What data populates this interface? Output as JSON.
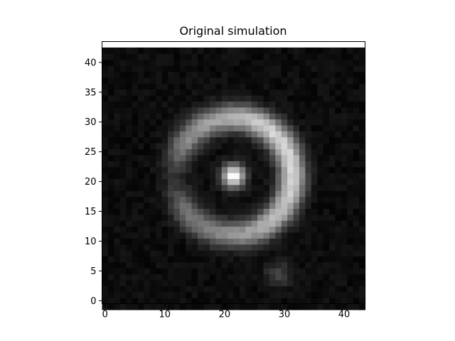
{
  "chart_data": {
    "type": "heatmap",
    "title": "Original simulation",
    "xlabel": "",
    "ylabel": "",
    "colormap": "gray",
    "grid": false,
    "legend": "none",
    "image_size": [
      44,
      44
    ],
    "xlim": [
      -0.5,
      43.5
    ],
    "ylim": [
      43.5,
      -0.5
    ],
    "xticks": [
      0,
      10,
      20,
      30,
      40
    ],
    "yticks": [
      0,
      5,
      10,
      15,
      20,
      25,
      30,
      35,
      40
    ],
    "value_range": [
      0,
      1
    ],
    "features": [
      {
        "name": "central-core",
        "x": 21.5,
        "y": 22,
        "peak": 0.98
      },
      {
        "name": "ring",
        "x": 21.5,
        "y": 22,
        "radius": 9.8,
        "peak": 0.8,
        "gap_sector_deg": [
          150,
          215
        ]
      },
      {
        "name": "faint-clump",
        "x": 29,
        "y": 5.5,
        "peak": 0.2
      }
    ],
    "background_level": 0.05
  }
}
